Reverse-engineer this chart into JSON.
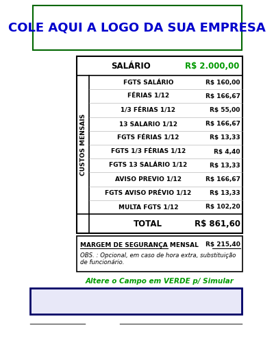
{
  "title_text": "COLE AQUI A LOGO DA SUA EMPRESA",
  "title_color": "#0000CC",
  "title_border_color": "#006600",
  "salary_label": "SALÁRIO",
  "salary_value": "R$ 2.000,00",
  "salary_value_color": "#009900",
  "custos_label": "CUSTOS MENSAIS",
  "items": [
    [
      "FGTS SALÁRIO",
      "R$ 160,00"
    ],
    [
      "FÉRIAS 1/12",
      "R$ 166,67"
    ],
    [
      "1/3 FÉRIAS 1/12",
      "R$ 55,00"
    ],
    [
      "13 SALARIO 1/12",
      "R$ 166,67"
    ],
    [
      "FGTS FÉRIAS 1/12",
      "R$ 13,33"
    ],
    [
      "FGTS 1/3 FÉRIAS 1/12",
      "R$ 4,40"
    ],
    [
      "FGTS 13 SALÁRIO 1/12",
      "R$ 13,33"
    ],
    [
      "AVISO PREVIO 1/12",
      "R$ 166,67"
    ],
    [
      "FGTS AVISO PRÉVIO 1/12",
      "R$ 13,33"
    ],
    [
      "MULTA FGTS 1/12",
      "R$ 102,20"
    ]
  ],
  "total_label": "TOTAL",
  "total_value": "R$ 861,60",
  "margem_label": "MARGEM DE SEGURANÇA MENSAL",
  "margem_value": "R$ 215,40",
  "obs_text": "OBS. : Opcional, em caso de hora extra, substituição\nde funcionário.",
  "simulate_text": "Altere o Campo em VERDE p/ Simular",
  "simulate_color": "#009900",
  "table_border": "#000000",
  "text_color": "#000000",
  "bg_color": "#FFFFFF",
  "bottom_box_border": "#000066",
  "bottom_box_fill": "#E8E8F8",
  "footer_border": "#555555"
}
